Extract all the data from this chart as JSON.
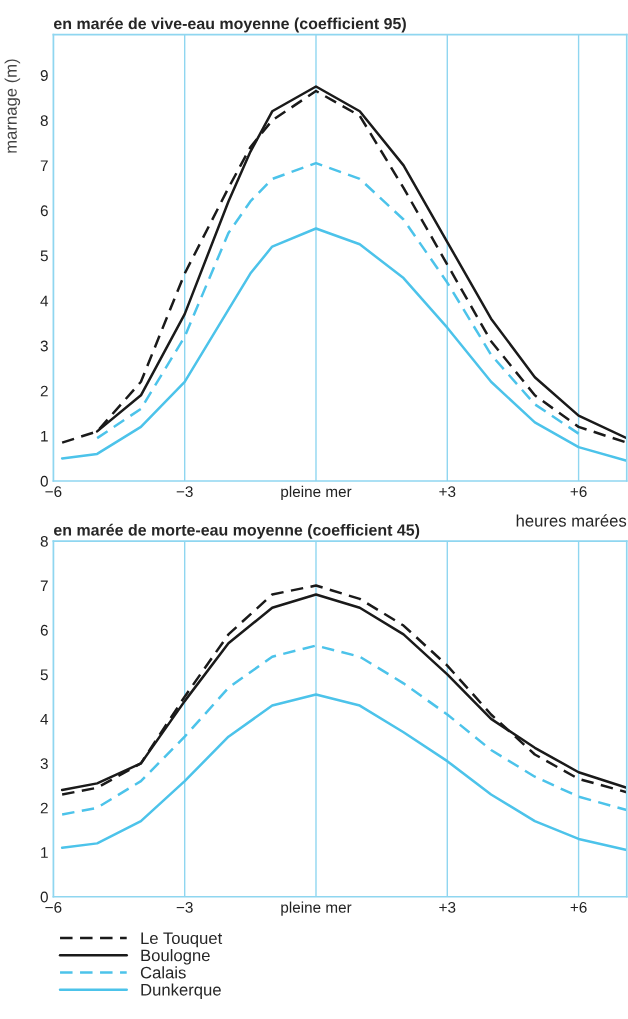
{
  "chart_data": [
    {
      "type": "line",
      "title": "en marée de vive-eau moyenne (coefficient 95)",
      "xlabel": "heures marées",
      "ylabel": "marnage (m)",
      "xlim": [
        -6,
        7.1
      ],
      "ylim": [
        0,
        9.9
      ],
      "xticks": [
        {
          "value": -6,
          "label": "−6"
        },
        {
          "value": -3,
          "label": "−3"
        },
        {
          "value": 0,
          "label": "pleine mer"
        },
        {
          "value": 3,
          "label": "+3"
        },
        {
          "value": 6,
          "label": "+6"
        }
      ],
      "yticks": [
        0,
        1,
        2,
        3,
        4,
        5,
        6,
        7,
        8,
        9
      ],
      "grid": "x",
      "legend": false,
      "x": [
        -5.8,
        -5,
        -4,
        -3,
        -2,
        -1.5,
        -1,
        0,
        1,
        2,
        3,
        4,
        5,
        6,
        7.1
      ],
      "series": [
        {
          "color": "#1a1a1a",
          "line_style": "dashed",
          "values": [
            0.85,
            1.1,
            2.2,
            4.6,
            6.5,
            7.4,
            8.0,
            8.65,
            8.1,
            6.5,
            4.8,
            3.1,
            1.9,
            1.2,
            0.85
          ]
        },
        {
          "color": "#1a1a1a",
          "line_style": "solid",
          "values": [
            null,
            1.1,
            1.9,
            3.7,
            6.2,
            7.3,
            8.2,
            8.75,
            8.2,
            7.0,
            5.3,
            3.6,
            2.3,
            1.45,
            0.95
          ]
        },
        {
          "color": "#4cc3ea",
          "line_style": "dashed",
          "values": [
            null,
            0.95,
            1.6,
            3.2,
            5.5,
            6.2,
            6.7,
            7.05,
            6.7,
            5.8,
            4.4,
            2.8,
            1.7,
            1.05,
            null
          ]
        },
        {
          "color": "#4cc3ea",
          "line_style": "solid",
          "values": [
            0.5,
            0.6,
            1.2,
            2.2,
            3.8,
            4.6,
            5.2,
            5.6,
            5.25,
            4.5,
            3.4,
            2.2,
            1.3,
            0.75,
            0.45
          ]
        }
      ]
    },
    {
      "type": "line",
      "title": "en marée de morte-eau moyenne (coefficient 45)",
      "xlim": [
        -6,
        7.1
      ],
      "ylim": [
        0,
        8
      ],
      "xticks": [
        {
          "value": -6,
          "label": "−6"
        },
        {
          "value": -3,
          "label": "−3"
        },
        {
          "value": 0,
          "label": "pleine mer"
        },
        {
          "value": 3,
          "label": "+3"
        },
        {
          "value": 6,
          "label": "+6"
        }
      ],
      "yticks": [
        0,
        1,
        2,
        3,
        4,
        5,
        6,
        7,
        8
      ],
      "grid": "x",
      "legend": "bottom left",
      "x": [
        -5.8,
        -5,
        -4,
        -3,
        -2,
        -1,
        0,
        1,
        2,
        3,
        4,
        5,
        6,
        7.1
      ],
      "series": [
        {
          "name": "Le Touquet",
          "color": "#1a1a1a",
          "line_style": "dashed",
          "values": [
            2.3,
            2.45,
            3.0,
            4.5,
            5.9,
            6.8,
            7.0,
            6.7,
            6.1,
            5.2,
            4.1,
            3.2,
            2.65,
            2.35
          ]
        },
        {
          "name": "Boulogne",
          "color": "#1a1a1a",
          "line_style": "solid",
          "values": [
            2.4,
            2.55,
            3.0,
            4.4,
            5.7,
            6.5,
            6.8,
            6.5,
            5.9,
            5.0,
            4.0,
            3.35,
            2.8,
            2.45
          ]
        },
        {
          "name": "Calais",
          "color": "#4cc3ea",
          "line_style": "dashed",
          "values": [
            1.85,
            2.0,
            2.6,
            3.6,
            4.7,
            5.4,
            5.65,
            5.4,
            4.8,
            4.1,
            3.3,
            2.7,
            2.25,
            1.95
          ]
        },
        {
          "name": "Dunkerque",
          "color": "#4cc3ea",
          "line_style": "solid",
          "values": [
            1.1,
            1.2,
            1.7,
            2.6,
            3.6,
            4.3,
            4.55,
            4.3,
            3.7,
            3.05,
            2.3,
            1.7,
            1.3,
            1.05
          ]
        }
      ]
    }
  ]
}
